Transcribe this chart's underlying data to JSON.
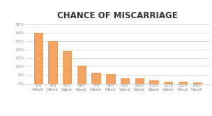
{
  "categories": [
    "3rd\nWeek",
    "4th\nWeek",
    "5th\nWeek",
    "6th\nWeek",
    "7th\nWeek",
    "8th\nWeek",
    "9th\nWeek",
    "10th\nWeek",
    "11th\nWeek",
    "12th\nWeek",
    "13th\nWeek",
    "14th\nWeek"
  ],
  "values": [
    30,
    25,
    19,
    10.5,
    6.5,
    5.5,
    3,
    3,
    1.7,
    1.2,
    1.1,
    0.8
  ],
  "bar_color": "#F4A460",
  "bar_edge_color": "#E07820",
  "title": "CHANCE OF MISCARRIAGE",
  "ylim": [
    0,
    37
  ],
  "yticks": [
    0,
    5,
    10,
    15,
    20,
    25,
    30,
    35
  ],
  "background_color": "#ffffff",
  "grid_color": "#d0d0d0",
  "title_fontsize": 8.5,
  "tick_fontsize": 4.5,
  "title_color": "#333333",
  "tick_color": "#888888"
}
